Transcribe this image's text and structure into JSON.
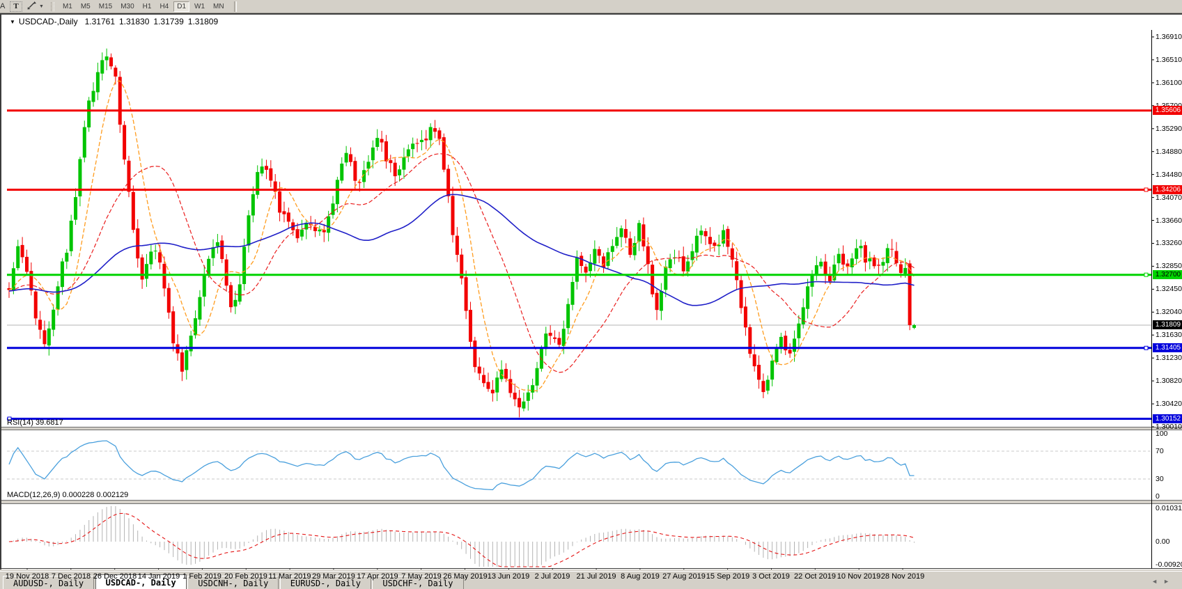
{
  "toolbar": {
    "cropped_icon_label": "A",
    "text_tool_label": "T",
    "timeframes": [
      "M1",
      "M5",
      "M15",
      "M30",
      "H1",
      "H4",
      "D1",
      "W1",
      "MN"
    ],
    "active_timeframe": "D1"
  },
  "chart": {
    "symbol_title": "USDCAD-,Daily",
    "quote_open": "1.31761",
    "quote_high": "1.31830",
    "quote_low": "1.31739",
    "quote_close": "1.31809",
    "current_price": "1.31809",
    "price_ticks": [
      "1.36910",
      "1.36510",
      "1.36100",
      "1.35700",
      "1.35290",
      "1.34880",
      "1.34480",
      "1.34070",
      "1.33660",
      "1.33260",
      "1.32850",
      "1.32450",
      "1.32040",
      "1.31630",
      "1.31230",
      "1.30820",
      "1.30420",
      "1.30010"
    ],
    "hlines": [
      {
        "value": "1.35606",
        "color": "#f20000",
        "text_color": "#ffffff",
        "handle": "none"
      },
      {
        "value": "1.34206",
        "color": "#f20000",
        "text_color": "#ffffff",
        "handle": "right"
      },
      {
        "value": "1.32700",
        "color": "#00d400",
        "text_color": "#000000",
        "handle": "right"
      },
      {
        "value": "1.31405",
        "color": "#0000dc",
        "text_color": "#ffffff",
        "handle": "right"
      },
      {
        "value": "1.30152",
        "color": "#0000dc",
        "text_color": "#ffffff",
        "handle": "left"
      }
    ],
    "dates": [
      "19 Nov 2018",
      "7 Dec 2018",
      "26 Dec 2018",
      "14 Jan 2019",
      "1 Feb 2019",
      "20 Feb 2019",
      "11 Mar 2019",
      "29 Mar 2019",
      "17 Apr 2019",
      "7 May 2019",
      "26 May 2019",
      "13 Jun 2019",
      "2 Jul 2019",
      "21 Jul 2019",
      "8 Aug 2019",
      "27 Aug 2019",
      "15 Sep 2019",
      "3 Oct 2019",
      "22 Oct 2019",
      "10 Nov 2019",
      "28 Nov 2019"
    ]
  },
  "rsi": {
    "label": "RSI(14) 39.6817",
    "ticks": [
      "100",
      "70",
      "30",
      "0"
    ]
  },
  "macd": {
    "label": "MACD(12,26,9) 0.000228 0.002129",
    "ticks": [
      "0.010311",
      "0.00",
      "-0.009203"
    ]
  },
  "tabs": {
    "items": [
      "AUDUSD-, Daily",
      "USDCAD-, Daily",
      "USDCNH-, Daily",
      "EURUSD-, Daily",
      "USDCHF-, Daily"
    ],
    "active_index": 1
  },
  "chart_data": {
    "type": "candlestick",
    "symbol": "USDCAD",
    "timeframe": "Daily",
    "price_axis_range": [
      1.3001,
      1.3691
    ],
    "last_candle_ohlc": [
      1.31761,
      1.3183,
      1.31739,
      1.31809
    ],
    "horizontal_levels": [
      1.35606,
      1.34206,
      1.327,
      1.31405,
      1.30152
    ],
    "rsi_period": 14,
    "rsi_value": 39.6817,
    "rsi_guide_levels": [
      70,
      30
    ],
    "macd_params": [
      12,
      26,
      9
    ],
    "macd_values": [
      0.000228,
      0.002129
    ],
    "macd_axis_range": [
      -0.009203,
      0.010311
    ],
    "ma_periods": {
      "fast": 8,
      "mid": 21,
      "slow": 55
    },
    "colors": {
      "up": "#00c400",
      "down": "#f20000",
      "ma_fast": "#ff9c1e",
      "ma_mid": "#ea1e1e",
      "ma_slow": "#1f1fc8",
      "rsi": "#4aa0dd",
      "macd_hist": "#b2b2b2",
      "macd_signal": "#e41414",
      "guide": "#c9c9c9",
      "last_price_line": "#b4b4b4"
    },
    "close_path": [
      [
        8,
        1.3243
      ],
      [
        20,
        1.332
      ],
      [
        34,
        1.3268
      ],
      [
        48,
        1.3195
      ],
      [
        62,
        1.3155
      ],
      [
        76,
        1.324
      ],
      [
        90,
        1.33
      ],
      [
        100,
        1.3365
      ],
      [
        110,
        1.3465
      ],
      [
        120,
        1.356
      ],
      [
        132,
        1.3615
      ],
      [
        145,
        1.364
      ],
      [
        158,
        1.3645
      ],
      [
        166,
        1.3575
      ],
      [
        176,
        1.346
      ],
      [
        188,
        1.335
      ],
      [
        198,
        1.324
      ],
      [
        208,
        1.329
      ],
      [
        220,
        1.332
      ],
      [
        232,
        1.325
      ],
      [
        244,
        1.316
      ],
      [
        258,
        1.3095
      ],
      [
        270,
        1.315
      ],
      [
        282,
        1.324
      ],
      [
        295,
        1.33
      ],
      [
        308,
        1.333
      ],
      [
        318,
        1.3265
      ],
      [
        330,
        1.319
      ],
      [
        342,
        1.328
      ],
      [
        355,
        1.339
      ],
      [
        368,
        1.346
      ],
      [
        382,
        1.344
      ],
      [
        396,
        1.34
      ],
      [
        410,
        1.336
      ],
      [
        424,
        1.333
      ],
      [
        438,
        1.337
      ],
      [
        452,
        1.3345
      ],
      [
        466,
        1.337
      ],
      [
        480,
        1.3425
      ],
      [
        494,
        1.348
      ],
      [
        508,
        1.344
      ],
      [
        522,
        1.347
      ],
      [
        536,
        1.351
      ],
      [
        550,
        1.3475
      ],
      [
        562,
        1.3445
      ],
      [
        576,
        1.348
      ],
      [
        590,
        1.3505
      ],
      [
        604,
        1.349
      ],
      [
        616,
        1.3545
      ],
      [
        628,
        1.351
      ],
      [
        638,
        1.3415
      ],
      [
        650,
        1.331
      ],
      [
        662,
        1.323
      ],
      [
        674,
        1.3135
      ],
      [
        688,
        1.308
      ],
      [
        702,
        1.3055
      ],
      [
        716,
        1.3095
      ],
      [
        730,
        1.306
      ],
      [
        744,
        1.3035
      ],
      [
        758,
        1.306
      ],
      [
        772,
        1.313
      ],
      [
        786,
        1.3175
      ],
      [
        798,
        1.3145
      ],
      [
        812,
        1.322
      ],
      [
        826,
        1.33
      ],
      [
        838,
        1.327
      ],
      [
        852,
        1.333
      ],
      [
        864,
        1.329
      ],
      [
        878,
        1.332
      ],
      [
        890,
        1.3345
      ],
      [
        902,
        1.3305
      ],
      [
        914,
        1.3375
      ],
      [
        926,
        1.328
      ],
      [
        938,
        1.3195
      ],
      [
        950,
        1.327
      ],
      [
        964,
        1.3315
      ],
      [
        978,
        1.3285
      ],
      [
        992,
        1.3315
      ],
      [
        1006,
        1.3345
      ],
      [
        1020,
        1.332
      ],
      [
        1034,
        1.3345
      ],
      [
        1046,
        1.329
      ],
      [
        1058,
        1.322
      ],
      [
        1070,
        1.315
      ],
      [
        1082,
        1.3095
      ],
      [
        1094,
        1.305
      ],
      [
        1106,
        1.3115
      ],
      [
        1118,
        1.316
      ],
      [
        1130,
        1.3135
      ],
      [
        1144,
        1.319
      ],
      [
        1158,
        1.325
      ],
      [
        1172,
        1.3295
      ],
      [
        1186,
        1.327
      ],
      [
        1200,
        1.3305
      ],
      [
        1214,
        1.3285
      ],
      [
        1228,
        1.3315
      ],
      [
        1242,
        1.33
      ],
      [
        1256,
        1.3285
      ],
      [
        1270,
        1.331
      ],
      [
        1284,
        1.329
      ],
      [
        1295,
        1.3269
      ],
      [
        1302,
        1.3215
      ],
      [
        1308,
        1.3181
      ]
    ]
  }
}
